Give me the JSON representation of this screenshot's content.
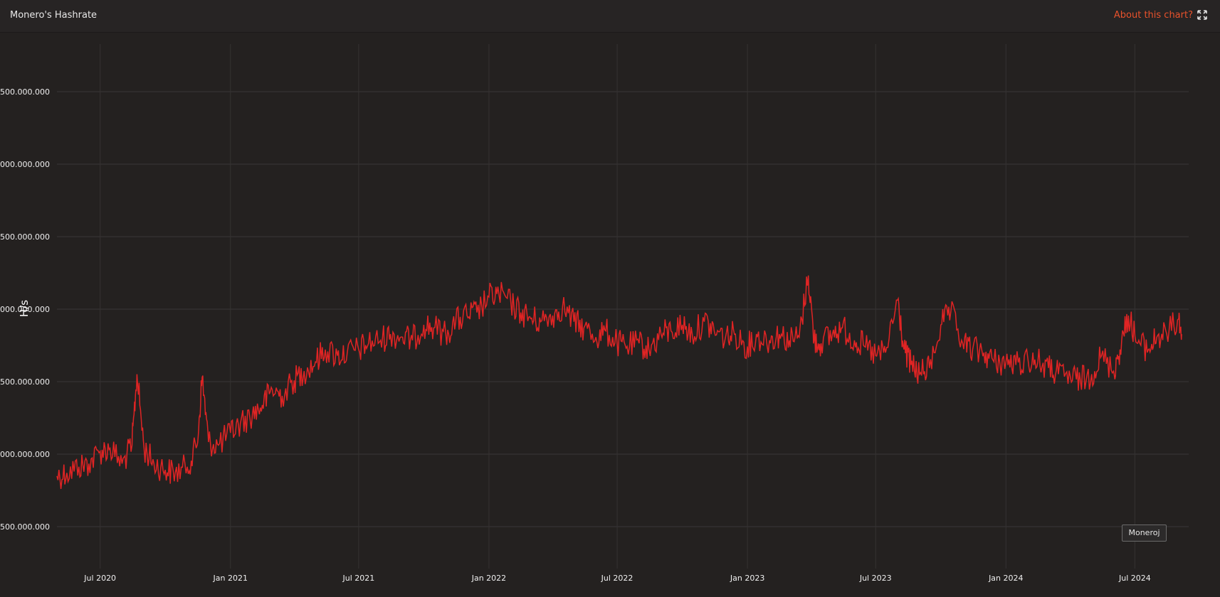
{
  "header": {
    "title": "Monero's Hashrate",
    "about_label": "About this chart?"
  },
  "tooltip": {
    "label": "Moneroj"
  },
  "icons": {
    "expand": "expand-icon"
  },
  "colors": {
    "line": "#e02424",
    "accent": "#e8522c",
    "background": "#242120"
  },
  "chart_data": {
    "type": "line",
    "ylabel": "H/s",
    "y_tick_labels": [
      "500.000.000",
      "000.000.000",
      "500.000.000",
      "000.000.000",
      "500.000.000",
      "000.000.000",
      "500.000.000"
    ],
    "x_tick_labels": [
      "Jul 2020",
      "Jan 2021",
      "Jul 2021",
      "Jan 2022",
      "Jul 2022",
      "Jan 2023",
      "Jul 2023",
      "Jan 2024",
      "Jul 2024"
    ],
    "grid": true,
    "x_range": [
      "2020-05-01",
      "2024-09-15"
    ],
    "y_range": [
      2250000000,
      3950000000
    ],
    "series": [
      {
        "points": [
          [
            "2020-05-01",
            2550000000
          ],
          [
            "2020-05-15",
            2560000000
          ],
          [
            "2020-06-01",
            2580000000
          ],
          [
            "2020-06-15",
            2590000000
          ],
          [
            "2020-07-01",
            2630000000
          ],
          [
            "2020-07-15",
            2640000000
          ],
          [
            "2020-08-01",
            2590000000
          ],
          [
            "2020-08-15",
            2650000000
          ],
          [
            "2020-08-22",
            2880000000
          ],
          [
            "2020-09-01",
            2640000000
          ],
          [
            "2020-09-15",
            2590000000
          ],
          [
            "2020-10-01",
            2570000000
          ],
          [
            "2020-10-15",
            2560000000
          ],
          [
            "2020-11-01",
            2580000000
          ],
          [
            "2020-11-15",
            2650000000
          ],
          [
            "2020-11-22",
            2870000000
          ],
          [
            "2020-12-01",
            2660000000
          ],
          [
            "2020-12-15",
            2650000000
          ],
          [
            "2021-01-01",
            2690000000
          ],
          [
            "2021-01-15",
            2720000000
          ],
          [
            "2021-02-01",
            2750000000
          ],
          [
            "2021-02-15",
            2780000000
          ],
          [
            "2021-03-01",
            2830000000
          ],
          [
            "2021-03-15",
            2810000000
          ],
          [
            "2021-04-01",
            2860000000
          ],
          [
            "2021-04-15",
            2890000000
          ],
          [
            "2021-05-01",
            2920000000
          ],
          [
            "2021-05-15",
            2960000000
          ],
          [
            "2021-06-01",
            2940000000
          ],
          [
            "2021-06-15",
            2950000000
          ],
          [
            "2021-07-01",
            2960000000
          ],
          [
            "2021-07-15",
            2980000000
          ],
          [
            "2021-08-01",
            2990000000
          ],
          [
            "2021-08-15",
            3010000000
          ],
          [
            "2021-09-01",
            3000000000
          ],
          [
            "2021-09-15",
            2990000000
          ],
          [
            "2021-10-01",
            3040000000
          ],
          [
            "2021-10-15",
            3030000000
          ],
          [
            "2021-11-01",
            3010000000
          ],
          [
            "2021-11-15",
            3050000000
          ],
          [
            "2021-12-01",
            3070000000
          ],
          [
            "2021-12-15",
            3080000000
          ],
          [
            "2022-01-01",
            3130000000
          ],
          [
            "2022-01-15",
            3140000000
          ],
          [
            "2022-02-01",
            3110000000
          ],
          [
            "2022-02-15",
            3080000000
          ],
          [
            "2022-03-01",
            3060000000
          ],
          [
            "2022-03-15",
            3050000000
          ],
          [
            "2022-04-01",
            3070000000
          ],
          [
            "2022-04-15",
            3100000000
          ],
          [
            "2022-05-01",
            3050000000
          ],
          [
            "2022-05-15",
            3030000000
          ],
          [
            "2022-06-01",
            3000000000
          ],
          [
            "2022-06-15",
            3020000000
          ],
          [
            "2022-07-01",
            2980000000
          ],
          [
            "2022-07-15",
            2970000000
          ],
          [
            "2022-08-01",
            2980000000
          ],
          [
            "2022-08-15",
            2960000000
          ],
          [
            "2022-09-01",
            3010000000
          ],
          [
            "2022-09-15",
            3020000000
          ],
          [
            "2022-10-01",
            3040000000
          ],
          [
            "2022-10-15",
            3010000000
          ],
          [
            "2022-11-01",
            3050000000
          ],
          [
            "2022-11-15",
            3020000000
          ],
          [
            "2022-12-01",
            3000000000
          ],
          [
            "2022-12-15",
            3010000000
          ],
          [
            "2023-01-01",
            2970000000
          ],
          [
            "2023-01-15",
            3000000000
          ],
          [
            "2023-02-01",
            2990000000
          ],
          [
            "2023-02-15",
            3010000000
          ],
          [
            "2023-03-01",
            2990000000
          ],
          [
            "2023-03-15",
            3000000000
          ],
          [
            "2023-03-28",
            3200000000
          ],
          [
            "2023-04-05",
            2990000000
          ],
          [
            "2023-04-15",
            2980000000
          ],
          [
            "2023-05-01",
            3010000000
          ],
          [
            "2023-05-15",
            3030000000
          ],
          [
            "2023-06-01",
            2990000000
          ],
          [
            "2023-06-15",
            2970000000
          ],
          [
            "2023-07-01",
            2940000000
          ],
          [
            "2023-07-15",
            2950000000
          ],
          [
            "2023-08-01",
            3120000000
          ],
          [
            "2023-08-10",
            2960000000
          ],
          [
            "2023-08-20",
            2910000000
          ],
          [
            "2023-09-01",
            2880000000
          ],
          [
            "2023-09-15",
            2900000000
          ],
          [
            "2023-10-01",
            3040000000
          ],
          [
            "2023-10-15",
            3080000000
          ],
          [
            "2023-11-01",
            2980000000
          ],
          [
            "2023-11-15",
            2960000000
          ],
          [
            "2023-12-01",
            2950000000
          ],
          [
            "2023-12-15",
            2920000000
          ],
          [
            "2024-01-01",
            2920000000
          ],
          [
            "2024-01-15",
            2910000000
          ],
          [
            "2024-02-01",
            2930000000
          ],
          [
            "2024-02-15",
            2920000000
          ],
          [
            "2024-03-01",
            2900000000
          ],
          [
            "2024-03-15",
            2880000000
          ],
          [
            "2024-04-01",
            2870000000
          ],
          [
            "2024-04-15",
            2860000000
          ],
          [
            "2024-05-01",
            2880000000
          ],
          [
            "2024-05-15",
            2940000000
          ],
          [
            "2024-06-01",
            2890000000
          ],
          [
            "2024-06-10",
            2960000000
          ],
          [
            "2024-06-22",
            3070000000
          ],
          [
            "2024-07-05",
            2980000000
          ],
          [
            "2024-07-20",
            2960000000
          ],
          [
            "2024-08-01",
            3000000000
          ],
          [
            "2024-08-15",
            3010000000
          ],
          [
            "2024-09-01",
            3060000000
          ],
          [
            "2024-09-05",
            3010000000
          ]
        ]
      }
    ]
  }
}
